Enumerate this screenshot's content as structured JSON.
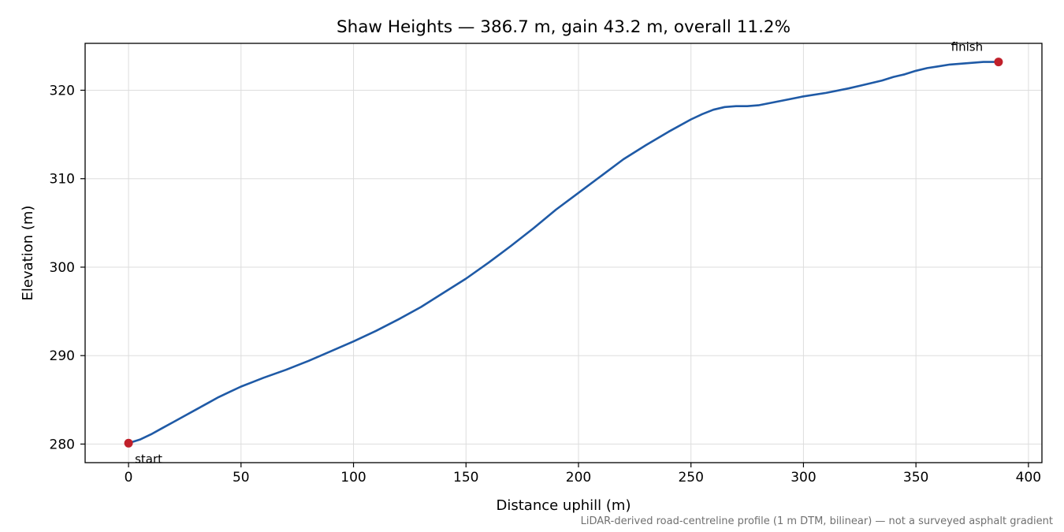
{
  "chart_data": {
    "type": "line",
    "title": "Shaw Heights — 386.7 m, gain 43.2 m, overall 11.2%",
    "xlabel": "Distance uphill (m)",
    "ylabel": "Elevation (m)",
    "xlim": [
      -19.3,
      406.0
    ],
    "ylim": [
      277.9,
      325.3
    ],
    "xticks": [
      0,
      50,
      100,
      150,
      200,
      250,
      300,
      350,
      400
    ],
    "yticks": [
      280,
      290,
      300,
      310,
      320
    ],
    "grid": true,
    "series": [
      {
        "color": "#1f5aa6",
        "x": [
          0,
          5,
          10,
          15,
          20,
          25,
          30,
          35,
          40,
          45,
          50,
          55,
          60,
          70,
          80,
          90,
          100,
          110,
          120,
          130,
          140,
          150,
          160,
          170,
          180,
          190,
          200,
          210,
          220,
          230,
          240,
          250,
          255,
          260,
          265,
          270,
          275,
          280,
          290,
          300,
          310,
          320,
          325,
          330,
          335,
          340,
          345,
          350,
          355,
          360,
          365,
          370,
          375,
          380,
          386.7
        ],
        "y": [
          280.1,
          280.5,
          281.1,
          281.8,
          282.5,
          283.2,
          283.9,
          284.6,
          285.3,
          285.9,
          286.5,
          287.0,
          287.5,
          288.4,
          289.4,
          290.5,
          291.6,
          292.8,
          294.1,
          295.5,
          297.1,
          298.7,
          300.5,
          302.4,
          304.4,
          306.5,
          308.4,
          310.3,
          312.2,
          313.8,
          315.3,
          316.7,
          317.3,
          317.8,
          318.1,
          318.2,
          318.2,
          318.3,
          318.8,
          319.3,
          319.7,
          320.2,
          320.5,
          320.8,
          321.1,
          321.5,
          321.8,
          322.2,
          322.5,
          322.7,
          322.9,
          323.0,
          323.1,
          323.2,
          323.2
        ]
      }
    ],
    "markers": [
      {
        "label": "start",
        "x": 0,
        "y": 280.1,
        "color": "#c0202a"
      },
      {
        "label": "finish",
        "x": 386.7,
        "y": 323.2,
        "color": "#c0202a"
      }
    ],
    "footnote": "LiDAR-derived road-centreline profile (1 m DTM, bilinear) — not a surveyed asphalt gradient"
  }
}
